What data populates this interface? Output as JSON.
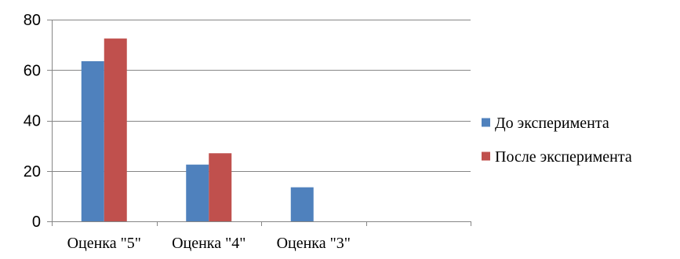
{
  "chart_data": {
    "type": "bar",
    "categories": [
      "Оценка \"5\"",
      "Оценка \"4\"",
      "Оценка \"3\"",
      ""
    ],
    "series": [
      {
        "name": "До эксперимента",
        "values": [
          63.5,
          22.5,
          13.5,
          0
        ],
        "color": "#4F81BD"
      },
      {
        "name": "После эксперимента",
        "values": [
          72.5,
          27,
          0,
          0
        ],
        "color": "#C0504D"
      }
    ],
    "yticks": [
      0,
      20,
      40,
      60,
      80
    ],
    "ylim": [
      0,
      80
    ],
    "grid": true,
    "legend_position": "right"
  }
}
